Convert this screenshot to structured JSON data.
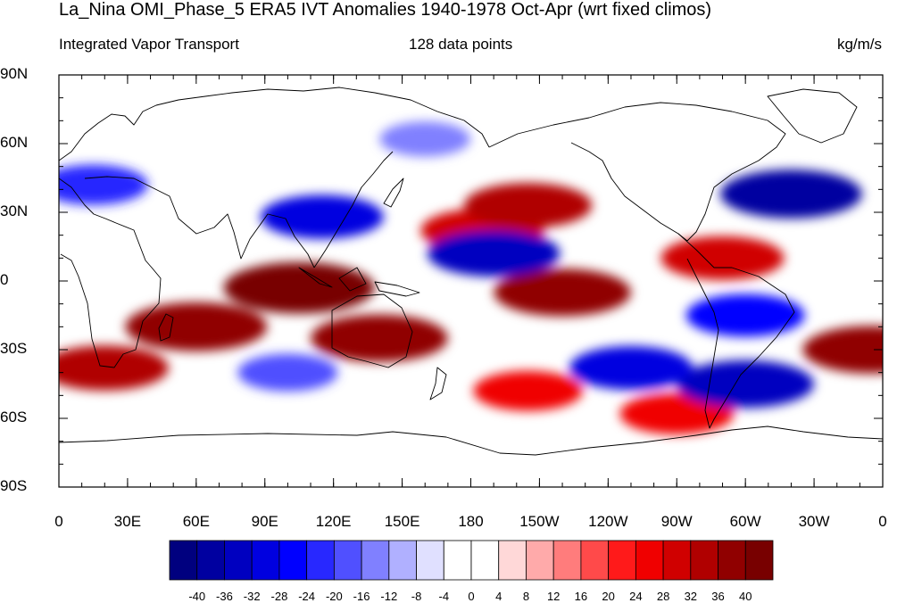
{
  "header": {
    "title": "La_Nina OMI_Phase_5 ERA5 IVT Anomalies 1940-1978 Oct-Apr (wrt fixed climos)",
    "left_label": "Integrated Vapor Transport",
    "center_label": "128 data points",
    "right_label": "kg/m/s"
  },
  "axes": {
    "y_ticks": [
      "90N",
      "60N",
      "30N",
      "0",
      "30S",
      "60S",
      "90S"
    ],
    "y_values": [
      90,
      60,
      30,
      0,
      -30,
      -60,
      -90
    ],
    "x_ticks": [
      "0",
      "30E",
      "60E",
      "90E",
      "120E",
      "150E",
      "180",
      "150W",
      "120W",
      "90W",
      "60W",
      "30W",
      "0"
    ],
    "x_values": [
      0,
      30,
      60,
      90,
      120,
      150,
      180,
      210,
      240,
      270,
      300,
      330,
      360
    ]
  },
  "colorbar": {
    "labels": [
      "-40",
      "-36",
      "-32",
      "-28",
      "-24",
      "-20",
      "-16",
      "-12",
      "-8",
      "-4",
      "0",
      "4",
      "8",
      "12",
      "16",
      "20",
      "24",
      "28",
      "32",
      "36",
      "40"
    ],
    "colors": [
      "#00007f",
      "#0000a0",
      "#0000c0",
      "#0000e0",
      "#0000ff",
      "#2828ff",
      "#5050ff",
      "#8080ff",
      "#b0b0ff",
      "#e0e0ff",
      "#ffffff",
      "#ffffff",
      "#ffd8d8",
      "#ffaaaa",
      "#ff7c7c",
      "#ff4a4a",
      "#ff1a1a",
      "#f00000",
      "#d00000",
      "#b00000",
      "#900000",
      "#780000"
    ]
  },
  "map_data": {
    "projection": "cylindrical-equidistant",
    "lon_range": [
      0,
      360
    ],
    "lat_range": [
      -90,
      90
    ],
    "anomaly_features": [
      {
        "lon": 105,
        "lat": -3,
        "value": 42
      },
      {
        "lon": 140,
        "lat": -25,
        "value": 36
      },
      {
        "lon": 60,
        "lat": -20,
        "value": 38
      },
      {
        "lon": 20,
        "lat": -38,
        "value": 32
      },
      {
        "lon": 220,
        "lat": -5,
        "value": 36
      },
      {
        "lon": 185,
        "lat": 22,
        "value": 30
      },
      {
        "lon": 205,
        "lat": 33,
        "value": 32
      },
      {
        "lon": 290,
        "lat": 10,
        "value": 30
      },
      {
        "lon": 355,
        "lat": -30,
        "value": 36
      },
      {
        "lon": 205,
        "lat": -48,
        "value": 24
      },
      {
        "lon": 270,
        "lat": -58,
        "value": 26
      },
      {
        "lon": 320,
        "lat": 38,
        "value": -38
      },
      {
        "lon": 190,
        "lat": 12,
        "value": -34
      },
      {
        "lon": 115,
        "lat": 28,
        "value": -30
      },
      {
        "lon": 300,
        "lat": -45,
        "value": -36
      },
      {
        "lon": 250,
        "lat": -38,
        "value": -30
      },
      {
        "lon": 300,
        "lat": -15,
        "value": -28
      },
      {
        "lon": 15,
        "lat": 42,
        "value": -24
      },
      {
        "lon": 160,
        "lat": 62,
        "value": -16
      },
      {
        "lon": 100,
        "lat": -40,
        "value": -20
      }
    ]
  }
}
